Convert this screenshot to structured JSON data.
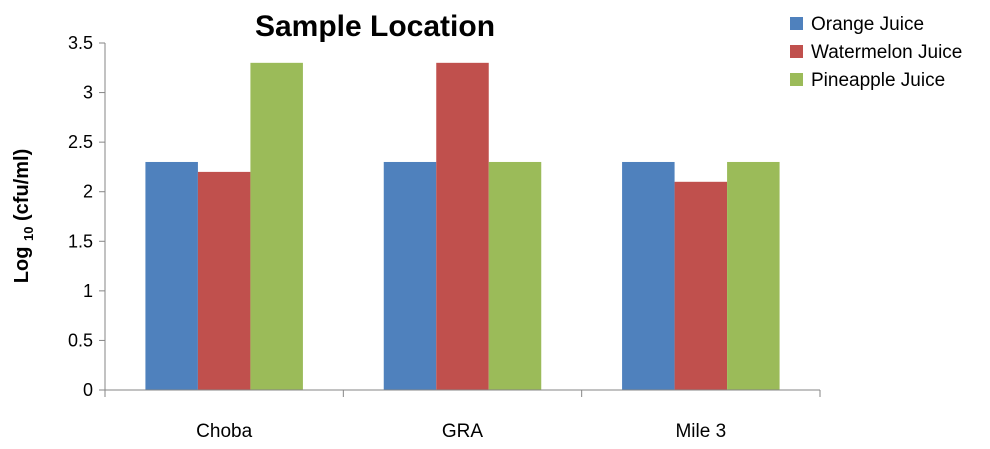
{
  "chart_data": {
    "type": "bar",
    "title": "Sample Location",
    "ylabel": {
      "prefix": "Log ",
      "subscript": "10",
      "suffix": " (cfu/ml)"
    },
    "xlabel": "",
    "categories": [
      "Choba",
      "GRA",
      "Mile 3"
    ],
    "series": [
      {
        "name": "Orange Juice",
        "values": [
          2.3,
          2.3,
          2.3
        ],
        "color": "#4F81BD"
      },
      {
        "name": "Watermelon Juice",
        "values": [
          2.2,
          3.3,
          2.1
        ],
        "color": "#C0504D"
      },
      {
        "name": "Pineapple Juice",
        "values": [
          3.3,
          2.3,
          2.3
        ],
        "color": "#9BBB59"
      }
    ],
    "ylim": [
      0,
      3.5
    ],
    "yticks": [
      "0",
      "0.5",
      "1",
      "1.5",
      "2",
      "2.5",
      "3",
      "3.5"
    ],
    "grid": false,
    "legend_position": "top-right"
  }
}
